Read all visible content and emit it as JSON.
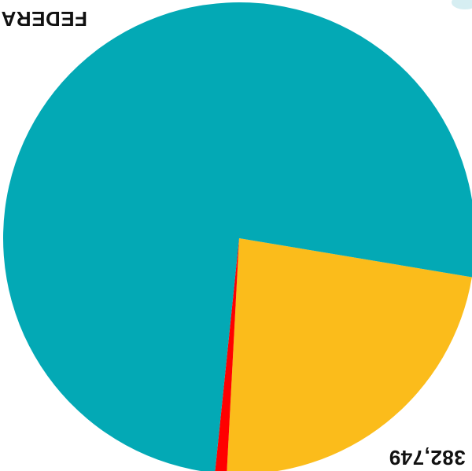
{
  "chart_data": {
    "type": "pie",
    "orientation_note_visible": "",
    "slices": [
      {
        "name": "",
        "value": 76.0,
        "color": "#03a9b5"
      },
      {
        "name": "",
        "value": 23.2,
        "color": "#fbbc1b"
      },
      {
        "name": "",
        "value": 0.8,
        "color": "#ff0000"
      }
    ],
    "labels": {
      "top_left": "FEDERA",
      "bottom_right": "382,749"
    }
  }
}
